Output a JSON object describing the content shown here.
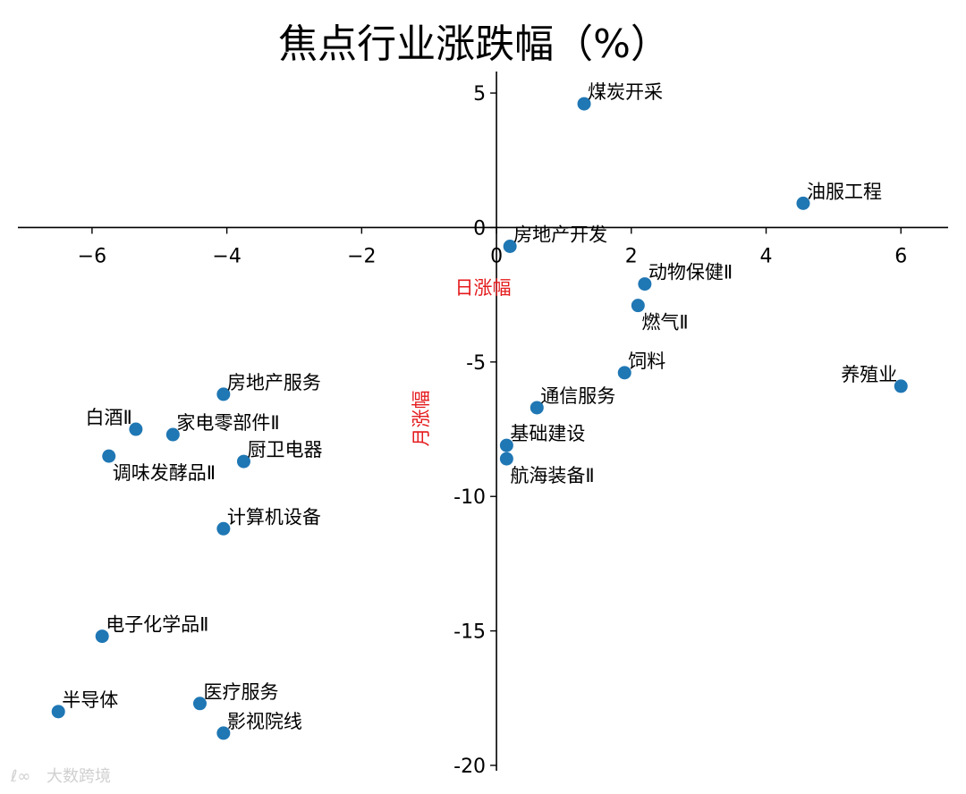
{
  "chart_data": {
    "type": "scatter",
    "title": "焦点行业涨跌幅（%）",
    "xlabel": "日涨幅",
    "ylabel": "月涨幅",
    "xlim": [
      -7.1,
      6.7
    ],
    "ylim": [
      -20.2,
      5.8
    ],
    "xticks": [
      -6,
      -4,
      -2,
      0,
      2,
      4,
      6
    ],
    "yticks": [
      5,
      0,
      -5,
      -10,
      -15,
      -20
    ],
    "xtick_labels": [
      "−6",
      "−4",
      "−2",
      "0",
      "2",
      "4",
      "6"
    ],
    "ytick_labels": [
      "5",
      "0",
      "-5",
      "-10",
      "-15",
      "-20"
    ],
    "grid": false,
    "marker_color": "#1f77b4",
    "label_color": "#e41a1c",
    "points": [
      {
        "name": "煤炭开采",
        "x": 1.3,
        "y": 4.6,
        "anchor": "ne"
      },
      {
        "name": "油服工程",
        "x": 4.55,
        "y": 0.9,
        "anchor": "ne"
      },
      {
        "name": "房地产开发",
        "x": 0.2,
        "y": -0.7,
        "anchor": "ne"
      },
      {
        "name": "动物保健Ⅱ",
        "x": 2.2,
        "y": -2.1,
        "anchor": "ne"
      },
      {
        "name": "燃气Ⅱ",
        "x": 2.1,
        "y": -2.9,
        "anchor": "se"
      },
      {
        "name": "饲料",
        "x": 1.9,
        "y": -5.4,
        "anchor": "ne"
      },
      {
        "name": "养殖业",
        "x": 6.0,
        "y": -5.9,
        "anchor": "nw"
      },
      {
        "name": "通信服务",
        "x": 0.6,
        "y": -6.7,
        "anchor": "ne"
      },
      {
        "name": "基础建设",
        "x": 0.15,
        "y": -8.1,
        "anchor": "ne"
      },
      {
        "name": "航海装备Ⅱ",
        "x": 0.15,
        "y": -8.6,
        "anchor": "se"
      },
      {
        "name": "房地产服务",
        "x": -4.05,
        "y": -6.2,
        "anchor": "ne"
      },
      {
        "name": "白酒Ⅱ",
        "x": -5.35,
        "y": -7.5,
        "anchor": "nw"
      },
      {
        "name": "家电零部件Ⅱ",
        "x": -4.8,
        "y": -7.7,
        "anchor": "ne"
      },
      {
        "name": "调味发酵品Ⅱ",
        "x": -5.75,
        "y": -8.5,
        "anchor": "se"
      },
      {
        "name": "厨卫电器",
        "x": -3.75,
        "y": -8.7,
        "anchor": "ne"
      },
      {
        "name": "计算机设备",
        "x": -4.05,
        "y": -11.2,
        "anchor": "ne"
      },
      {
        "name": "电子化学品Ⅱ",
        "x": -5.85,
        "y": -15.2,
        "anchor": "ne"
      },
      {
        "name": "半导体",
        "x": -6.5,
        "y": -18.0,
        "anchor": "ne"
      },
      {
        "name": "医疗服务",
        "x": -4.4,
        "y": -17.7,
        "anchor": "ne"
      },
      {
        "name": "影视院线",
        "x": -4.05,
        "y": -18.8,
        "anchor": "ne"
      }
    ]
  },
  "watermark": "大数跨境"
}
